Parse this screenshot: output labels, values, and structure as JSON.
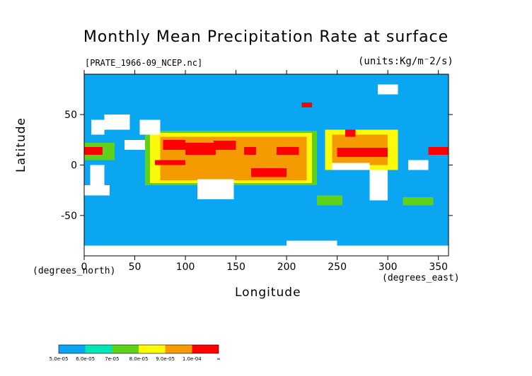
{
  "chart_data": {
    "type": "heatmap",
    "title": "Monthly Mean Precipitation Rate at surface",
    "source_label": "[PRATE_1966-09_NCEP.nc]",
    "units_label": "(units:Kg/m⁻2/s)",
    "xlabel": "Longitude",
    "ylabel": "Latitude",
    "x_unit_label": "(degrees_east)",
    "y_unit_label": "(degrees_north)",
    "xlim": [
      0,
      360
    ],
    "ylim": [
      -90,
      90
    ],
    "x_ticks": [
      0,
      50,
      100,
      150,
      200,
      250,
      300,
      350
    ],
    "y_ticks": [
      -50,
      0,
      50
    ],
    "colorbar": {
      "levels": [
        "5.0e-05",
        "6.0e-05",
        "7e-05",
        "8.0e-05",
        "9.0e-05",
        "1.0e-04",
        "∞"
      ],
      "colors": [
        "#0aa6f2",
        "#00e6b4",
        "#5ed21a",
        "#fafa0a",
        "#f59b00",
        "#ff0000"
      ]
    },
    "background_color": "#0aa6f2",
    "regions": [
      {
        "level": "lt_5e-05",
        "lon": [
          6,
          20
        ],
        "lat": [
          -20,
          0
        ]
      },
      {
        "level": "lt_5e-05",
        "lon": [
          0,
          25
        ],
        "lat": [
          -30,
          -20
        ]
      },
      {
        "level": "lt_5e-05",
        "lon": [
          7,
          20
        ],
        "lat": [
          30,
          45
        ]
      },
      {
        "level": "lt_5e-05",
        "lon": [
          20,
          45
        ],
        "lat": [
          35,
          50
        ]
      },
      {
        "level": "lt_5e-05",
        "lon": [
          55,
          75
        ],
        "lat": [
          30,
          45
        ]
      },
      {
        "level": "lt_5e-05",
        "lon": [
          112,
          148
        ],
        "lat": [
          -34,
          -14
        ]
      },
      {
        "level": "lt_5e-05",
        "lon": [
          245,
          282
        ],
        "lat": [
          -5,
          2
        ]
      },
      {
        "level": "lt_5e-05",
        "lon": [
          282,
          300
        ],
        "lat": [
          -35,
          -5
        ]
      },
      {
        "level": "lt_5e-05",
        "lon": [
          320,
          340
        ],
        "lat": [
          -5,
          5
        ]
      },
      {
        "level": "lt_5e-05",
        "lon": [
          0,
          360
        ],
        "lat": [
          -90,
          -80
        ]
      },
      {
        "level": "lt_5e-05",
        "lon": [
          200,
          250
        ],
        "lat": [
          -90,
          -75
        ]
      },
      {
        "level": "lt_5e-05",
        "lon": [
          40,
          60
        ],
        "lat": [
          15,
          25
        ]
      },
      {
        "level": "lt_5e-05",
        "lon": [
          290,
          310
        ],
        "lat": [
          70,
          80
        ]
      },
      {
        "level": "ge_1e-04",
        "lon": [
          0,
          18
        ],
        "lat": [
          10,
          18
        ]
      },
      {
        "level": "ge_1e-04",
        "lon": [
          78,
          100
        ],
        "lat": [
          15,
          25
        ]
      },
      {
        "level": "ge_1e-04",
        "lon": [
          100,
          130
        ],
        "lat": [
          10,
          22
        ]
      },
      {
        "level": "ge_1e-04",
        "lon": [
          128,
          150
        ],
        "lat": [
          15,
          24
        ]
      },
      {
        "level": "ge_1e-04",
        "lon": [
          158,
          170
        ],
        "lat": [
          10,
          18
        ]
      },
      {
        "level": "ge_1e-04",
        "lon": [
          190,
          212
        ],
        "lat": [
          10,
          18
        ]
      },
      {
        "level": "ge_1e-04",
        "lon": [
          165,
          200
        ],
        "lat": [
          -12,
          -3
        ]
      },
      {
        "level": "ge_1e-04",
        "lon": [
          70,
          100
        ],
        "lat": [
          0,
          5
        ]
      },
      {
        "level": "ge_1e-04",
        "lon": [
          250,
          300
        ],
        "lat": [
          8,
          17
        ]
      },
      {
        "level": "ge_1e-04",
        "lon": [
          340,
          360
        ],
        "lat": [
          10,
          18
        ]
      },
      {
        "level": "ge_1e-04",
        "lon": [
          258,
          268
        ],
        "lat": [
          28,
          35
        ]
      },
      {
        "level": "ge_1e-04",
        "lon": [
          215,
          225
        ],
        "lat": [
          57,
          62
        ]
      },
      {
        "level": "9e-05_to_1e-04",
        "lon": [
          75,
          220
        ],
        "lat": [
          -15,
          28
        ]
      },
      {
        "level": "9e-05_to_1e-04",
        "lon": [
          245,
          300
        ],
        "lat": [
          0,
          30
        ]
      },
      {
        "level": "8e-05_to_9e-05",
        "lon": [
          65,
          225
        ],
        "lat": [
          -18,
          32
        ]
      },
      {
        "level": "8e-05_to_9e-05",
        "lon": [
          238,
          310
        ],
        "lat": [
          -5,
          35
        ]
      },
      {
        "level": "7e-05_to_8e-05",
        "lon": [
          60,
          230
        ],
        "lat": [
          -20,
          34
        ]
      },
      {
        "level": "7e-05_to_8e-05",
        "lon": [
          0,
          30
        ],
        "lat": [
          5,
          22
        ]
      },
      {
        "level": "7e-05_to_8e-05",
        "lon": [
          230,
          255
        ],
        "lat": [
          -40,
          -30
        ]
      },
      {
        "level": "7e-05_to_8e-05",
        "lon": [
          315,
          345
        ],
        "lat": [
          -40,
          -32
        ]
      }
    ]
  }
}
